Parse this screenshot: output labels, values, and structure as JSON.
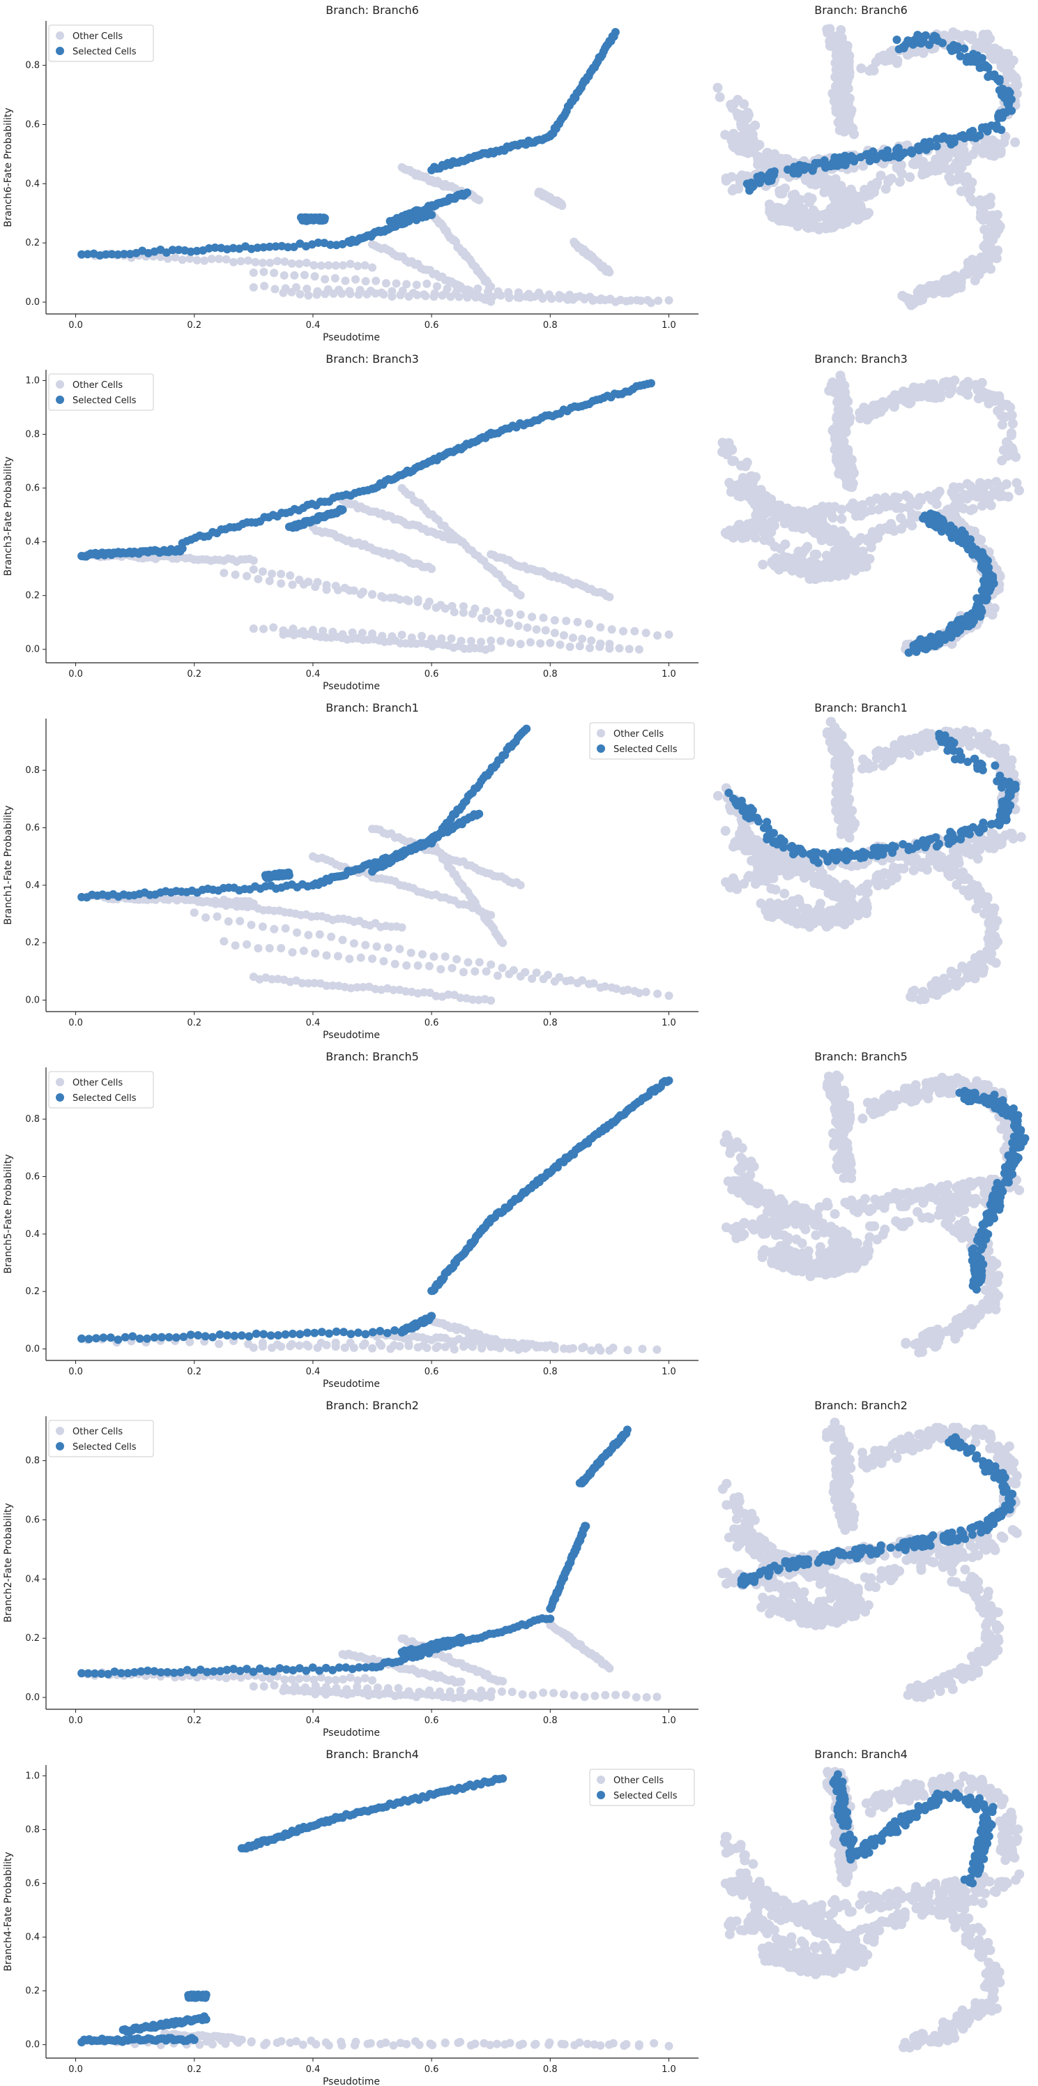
{
  "colors": {
    "other": "#d0d4e4",
    "selected": "#3a7dba",
    "axis": "#222222"
  },
  "chart_data": [
    {
      "type": "scatter",
      "title": "Branch: Branch6",
      "umap_title": "Branch: Branch6",
      "xlabel": "Pseudotime",
      "ylabel": "Branch6-Fate Probability",
      "xlim": [
        -0.05,
        1.05
      ],
      "ylim": [
        -0.04,
        0.95
      ],
      "xticks": [
        "0.0",
        "0.2",
        "0.4",
        "0.6",
        "0.8",
        "1.0"
      ],
      "yticks": [
        "0.0",
        "0.2",
        "0.4",
        "0.6",
        "0.8"
      ],
      "legend": {
        "position": "upper-left",
        "entries": [
          "Other Cells",
          "Selected Cells"
        ]
      },
      "series": [
        {
          "name": "Other Cells",
          "segments": [
            {
              "x": [
                0.02,
                0.5
              ],
              "y": [
                0.16,
                0.12
              ]
            },
            {
              "x": [
                0.3,
                0.97
              ],
              "y": [
                0.1,
                0.0
              ]
            },
            {
              "x": [
                0.3,
                1.0
              ],
              "y": [
                0.05,
                0.0
              ]
            },
            {
              "x": [
                0.35,
                0.9
              ],
              "y": [
                0.03,
                0.01
              ]
            },
            {
              "x": [
                0.5,
                0.7
              ],
              "y": [
                0.2,
                0.0
              ]
            },
            {
              "x": [
                0.6,
                0.7
              ],
              "y": [
                0.3,
                0.05
              ]
            },
            {
              "x": [
                0.78,
                0.82
              ],
              "y": [
                0.37,
                0.33
              ]
            },
            {
              "x": [
                0.84,
                0.9
              ],
              "y": [
                0.2,
                0.1
              ]
            },
            {
              "x": [
                0.55,
                0.68
              ],
              "y": [
                0.45,
                0.35
              ]
            }
          ]
        },
        {
          "name": "Selected Cells",
          "segments": [
            {
              "x": [
                0.01,
                0.46
              ],
              "y": [
                0.16,
                0.2
              ]
            },
            {
              "x": [
                0.46,
                0.6
              ],
              "y": [
                0.2,
                0.3
              ]
            },
            {
              "x": [
                0.6,
                0.8
              ],
              "y": [
                0.45,
                0.56
              ]
            },
            {
              "x": [
                0.8,
                0.91
              ],
              "y": [
                0.56,
                0.91
              ]
            },
            {
              "x": [
                0.53,
                0.66
              ],
              "y": [
                0.27,
                0.37
              ]
            },
            {
              "x": [
                0.38,
                0.42
              ],
              "y": [
                0.28,
                0.28
              ]
            }
          ]
        }
      ]
    },
    {
      "type": "scatter",
      "title": "Branch: Branch3",
      "umap_title": "Branch: Branch3",
      "xlabel": "Pseudotime",
      "ylabel": "Branch3-Fate Probability",
      "xlim": [
        -0.05,
        1.05
      ],
      "ylim": [
        -0.05,
        1.04
      ],
      "xticks": [
        "0.0",
        "0.2",
        "0.4",
        "0.6",
        "0.8",
        "1.0"
      ],
      "yticks": [
        "0.0",
        "0.2",
        "0.4",
        "0.6",
        "0.8",
        "1.0"
      ],
      "legend": {
        "position": "upper-left",
        "entries": [
          "Other Cells",
          "Selected Cells"
        ]
      },
      "series": [
        {
          "name": "Other Cells",
          "segments": [
            {
              "x": [
                0.02,
                0.3
              ],
              "y": [
                0.35,
                0.33
              ]
            },
            {
              "x": [
                0.3,
                0.9
              ],
              "y": [
                0.3,
                0.02
              ]
            },
            {
              "x": [
                0.25,
                1.0
              ],
              "y": [
                0.28,
                0.05
              ]
            },
            {
              "x": [
                0.3,
                0.95
              ],
              "y": [
                0.08,
                0.0
              ]
            },
            {
              "x": [
                0.35,
                0.7
              ],
              "y": [
                0.06,
                0.0
              ]
            },
            {
              "x": [
                0.4,
                0.6
              ],
              "y": [
                0.45,
                0.3
              ]
            },
            {
              "x": [
                0.55,
                0.75
              ],
              "y": [
                0.6,
                0.2
              ]
            },
            {
              "x": [
                0.7,
                0.9
              ],
              "y": [
                0.35,
                0.2
              ]
            },
            {
              "x": [
                0.45,
                0.65
              ],
              "y": [
                0.55,
                0.4
              ]
            }
          ]
        },
        {
          "name": "Selected Cells",
          "segments": [
            {
              "x": [
                0.01,
                0.18
              ],
              "y": [
                0.35,
                0.37
              ]
            },
            {
              "x": [
                0.18,
                0.5
              ],
              "y": [
                0.4,
                0.6
              ]
            },
            {
              "x": [
                0.5,
                0.7
              ],
              "y": [
                0.6,
                0.8
              ]
            },
            {
              "x": [
                0.7,
                0.97
              ],
              "y": [
                0.8,
                0.99
              ]
            },
            {
              "x": [
                0.36,
                0.45
              ],
              "y": [
                0.45,
                0.52
              ]
            }
          ]
        }
      ]
    },
    {
      "type": "scatter",
      "title": "Branch: Branch1",
      "umap_title": "Branch: Branch1",
      "xlabel": "Pseudotime",
      "ylabel": "Branch1-Fate Probability",
      "xlim": [
        -0.05,
        1.05
      ],
      "ylim": [
        -0.04,
        0.98
      ],
      "xticks": [
        "0.0",
        "0.2",
        "0.4",
        "0.6",
        "0.8",
        "1.0"
      ],
      "yticks": [
        "0.0",
        "0.2",
        "0.4",
        "0.6",
        "0.8"
      ],
      "legend": {
        "position": "upper-right",
        "entries": [
          "Other Cells",
          "Selected Cells"
        ]
      },
      "series": [
        {
          "name": "Other Cells",
          "segments": [
            {
              "x": [
                0.02,
                0.3
              ],
              "y": [
                0.36,
                0.34
              ]
            },
            {
              "x": [
                0.2,
                0.95
              ],
              "y": [
                0.3,
                0.03
              ]
            },
            {
              "x": [
                0.25,
                1.0
              ],
              "y": [
                0.2,
                0.02
              ]
            },
            {
              "x": [
                0.3,
                0.7
              ],
              "y": [
                0.08,
                0.0
              ]
            },
            {
              "x": [
                0.4,
                0.7
              ],
              "y": [
                0.5,
                0.3
              ]
            },
            {
              "x": [
                0.5,
                0.75
              ],
              "y": [
                0.6,
                0.4
              ]
            },
            {
              "x": [
                0.6,
                0.72
              ],
              "y": [
                0.55,
                0.2
              ]
            },
            {
              "x": [
                0.2,
                0.55
              ],
              "y": [
                0.35,
                0.25
              ]
            }
          ]
        },
        {
          "name": "Selected Cells",
          "segments": [
            {
              "x": [
                0.01,
                0.4
              ],
              "y": [
                0.36,
                0.4
              ]
            },
            {
              "x": [
                0.4,
                0.6
              ],
              "y": [
                0.4,
                0.55
              ]
            },
            {
              "x": [
                0.6,
                0.76
              ],
              "y": [
                0.55,
                0.95
              ]
            },
            {
              "x": [
                0.5,
                0.68
              ],
              "y": [
                0.45,
                0.65
              ]
            },
            {
              "x": [
                0.32,
                0.36
              ],
              "y": [
                0.43,
                0.44
              ]
            }
          ]
        }
      ]
    },
    {
      "type": "scatter",
      "title": "Branch: Branch5",
      "umap_title": "Branch: Branch5",
      "xlabel": "Pseudotime",
      "ylabel": "Branch5-Fate Probability",
      "xlim": [
        -0.05,
        1.05
      ],
      "ylim": [
        -0.04,
        0.98
      ],
      "xticks": [
        "0.0",
        "0.2",
        "0.4",
        "0.6",
        "0.8",
        "1.0"
      ],
      "yticks": [
        "0.0",
        "0.2",
        "0.4",
        "0.6",
        "0.8"
      ],
      "legend": {
        "position": "upper-left",
        "entries": [
          "Other Cells",
          "Selected Cells"
        ]
      },
      "series": [
        {
          "name": "Other Cells",
          "segments": [
            {
              "x": [
                0.02,
                0.98
              ],
              "y": [
                0.03,
                0.0
              ]
            },
            {
              "x": [
                0.3,
                0.9
              ],
              "y": [
                0.01,
                0.0
              ]
            },
            {
              "x": [
                0.5,
                0.8
              ],
              "y": [
                0.05,
                0.01
              ]
            },
            {
              "x": [
                0.6,
                0.75
              ],
              "y": [
                0.1,
                0.0
              ]
            }
          ]
        },
        {
          "name": "Selected Cells",
          "segments": [
            {
              "x": [
                0.01,
                0.55
              ],
              "y": [
                0.035,
                0.06
              ]
            },
            {
              "x": [
                0.55,
                0.6
              ],
              "y": [
                0.06,
                0.11
              ]
            },
            {
              "x": [
                0.6,
                0.7
              ],
              "y": [
                0.2,
                0.45
              ]
            },
            {
              "x": [
                0.7,
                0.85
              ],
              "y": [
                0.45,
                0.7
              ]
            },
            {
              "x": [
                0.85,
                1.0
              ],
              "y": [
                0.7,
                0.94
              ]
            }
          ]
        }
      ]
    },
    {
      "type": "scatter",
      "title": "Branch: Branch2",
      "umap_title": "Branch: Branch2",
      "xlabel": "Pseudotime",
      "ylabel": "Branch2-Fate Probability",
      "xlim": [
        -0.05,
        1.05
      ],
      "ylim": [
        -0.04,
        0.95
      ],
      "xticks": [
        "0.0",
        "0.2",
        "0.4",
        "0.6",
        "0.8",
        "1.0"
      ],
      "yticks": [
        "0.0",
        "0.2",
        "0.4",
        "0.6",
        "0.8"
      ],
      "legend": {
        "position": "upper-left",
        "entries": [
          "Other Cells",
          "Selected Cells"
        ]
      },
      "series": [
        {
          "name": "Other Cells",
          "segments": [
            {
              "x": [
                0.02,
                0.5
              ],
              "y": [
                0.08,
                0.06
              ]
            },
            {
              "x": [
                0.3,
                0.98
              ],
              "y": [
                0.04,
                0.0
              ]
            },
            {
              "x": [
                0.35,
                0.7
              ],
              "y": [
                0.02,
                0.0
              ]
            },
            {
              "x": [
                0.45,
                0.65
              ],
              "y": [
                0.15,
                0.05
              ]
            },
            {
              "x": [
                0.55,
                0.72
              ],
              "y": [
                0.2,
                0.05
              ]
            },
            {
              "x": [
                0.8,
                0.9
              ],
              "y": [
                0.25,
                0.1
              ]
            }
          ]
        },
        {
          "name": "Selected Cells",
          "segments": [
            {
              "x": [
                0.01,
                0.5
              ],
              "y": [
                0.08,
                0.1
              ]
            },
            {
              "x": [
                0.5,
                0.8
              ],
              "y": [
                0.1,
                0.27
              ]
            },
            {
              "x": [
                0.8,
                0.86
              ],
              "y": [
                0.3,
                0.58
              ]
            },
            {
              "x": [
                0.85,
                0.93
              ],
              "y": [
                0.72,
                0.9
              ]
            },
            {
              "x": [
                0.55,
                0.65
              ],
              "y": [
                0.15,
                0.2
              ]
            }
          ]
        }
      ]
    },
    {
      "type": "scatter",
      "title": "Branch: Branch4",
      "umap_title": "Branch: Branch4",
      "xlabel": "Pseudotime",
      "ylabel": "Branch4-Fate Probability",
      "xlim": [
        -0.05,
        1.05
      ],
      "ylim": [
        -0.05,
        1.04
      ],
      "xticks": [
        "0.0",
        "0.2",
        "0.4",
        "0.6",
        "0.8",
        "1.0"
      ],
      "yticks": [
        "0.0",
        "0.2",
        "0.4",
        "0.6",
        "0.8",
        "1.0"
      ],
      "legend": {
        "position": "upper-right",
        "entries": [
          "Other Cells",
          "Selected Cells"
        ]
      },
      "series": [
        {
          "name": "Other Cells",
          "segments": [
            {
              "x": [
                0.02,
                1.0
              ],
              "y": [
                0.015,
                0.0
              ]
            },
            {
              "x": [
                0.1,
                0.95
              ],
              "y": [
                0.005,
                0.0
              ]
            },
            {
              "x": [
                0.15,
                0.28
              ],
              "y": [
                0.04,
                0.02
              ]
            }
          ]
        },
        {
          "name": "Selected Cells",
          "segments": [
            {
              "x": [
                0.01,
                0.2
              ],
              "y": [
                0.015,
                0.02
              ]
            },
            {
              "x": [
                0.08,
                0.22
              ],
              "y": [
                0.05,
                0.1
              ]
            },
            {
              "x": [
                0.19,
                0.22
              ],
              "y": [
                0.18,
                0.18
              ]
            },
            {
              "x": [
                0.28,
                0.45
              ],
              "y": [
                0.73,
                0.85
              ]
            },
            {
              "x": [
                0.45,
                0.72
              ],
              "y": [
                0.85,
                0.99
              ]
            }
          ]
        }
      ]
    }
  ]
}
